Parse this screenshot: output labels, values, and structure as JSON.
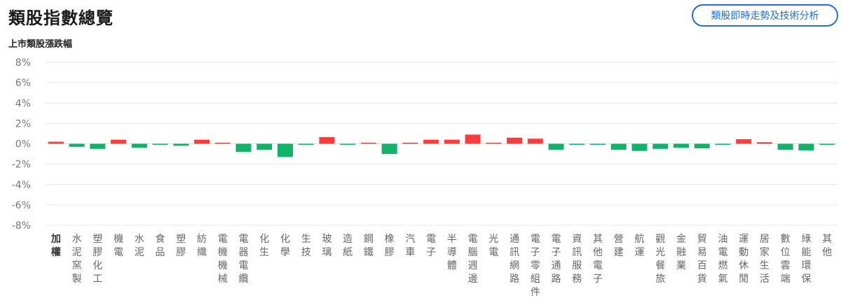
{
  "header": {
    "title": "類股指數總覽",
    "analysis_button": "類股即時走勢及技術分析"
  },
  "colors": {
    "up": "#ff3b3b",
    "down": "#10b368",
    "grid": "#e6e6e6",
    "accent": "#1f6fd6"
  },
  "chart_data": {
    "type": "bar",
    "title": "上市類股漲跌幅",
    "ylim": [
      -8,
      8
    ],
    "yticks": [
      "8%",
      "6%",
      "4%",
      "2%",
      "0%",
      "-2%",
      "-4%",
      "-6%",
      "-8%"
    ],
    "grid": true,
    "categories": [
      "加權",
      "水泥窯製",
      "塑膠化工",
      "機電",
      "水泥",
      "食品",
      "塑膠",
      "紡織",
      "電機機械",
      "電器電纜",
      "化生",
      "化學",
      "生技",
      "玻璃",
      "造紙",
      "鋼鐵",
      "橡膠",
      "汽車",
      "電子",
      "半導體",
      "電腦週邊",
      "光電",
      "通訊網路",
      "電子零組件",
      "電子通路",
      "資訊服務",
      "其他電子",
      "營建",
      "航運",
      "觀光餐旅",
      "金融業",
      "貿易百貨",
      "油電燃氣",
      "運動休閒",
      "居家生活",
      "數位雲端",
      "綠能環保",
      "其他"
    ],
    "values": [
      0.2,
      -0.3,
      -0.5,
      0.4,
      -0.4,
      -0.1,
      -0.2,
      0.4,
      0.1,
      -0.8,
      -0.6,
      -1.3,
      -0.1,
      0.65,
      -0.1,
      0.1,
      -1.0,
      0.1,
      0.4,
      0.4,
      0.9,
      0.1,
      0.6,
      0.5,
      -0.6,
      -0.1,
      -0.1,
      -0.6,
      -0.7,
      -0.5,
      -0.4,
      -0.45,
      -0.1,
      0.45,
      0.15,
      -0.6,
      -0.65,
      -0.1
    ]
  }
}
